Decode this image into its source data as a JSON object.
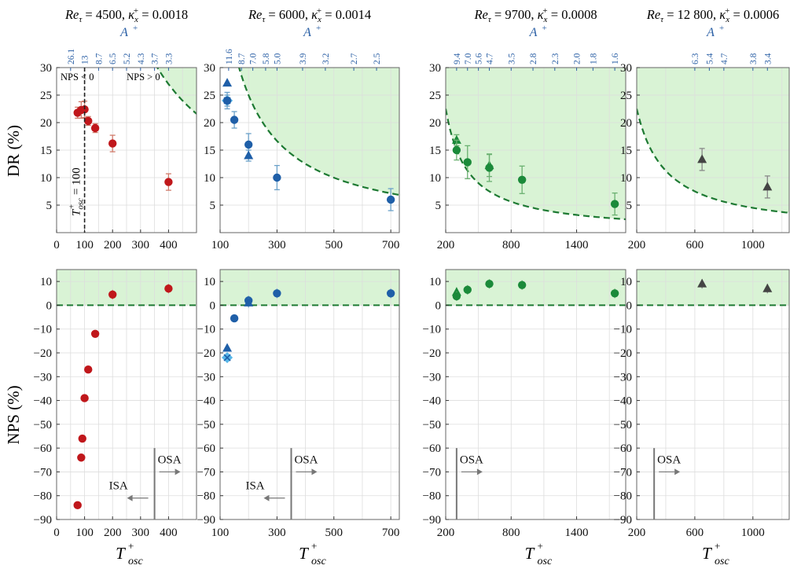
{
  "figure": {
    "ylabel_top": "DR (%)",
    "ylabel_bottom": "NPS (%)",
    "xlabel": {
      "main": "T",
      "sup": "+",
      "sub": "osc"
    },
    "top_axis_label": "A⁺",
    "top_region_labels": [
      "NPS < 0",
      "NPS > 0"
    ],
    "vertical_line_label": "T⁺osc = 100",
    "osa_label": "OSA",
    "isa_label": "ISA"
  },
  "colors": {
    "green_region": "#d9f3d5",
    "green_dashed": "#1e7a33",
    "top_axis": "#2a5fa5",
    "grid": "#dddddd",
    "red": "#c0171b",
    "blue": "#1f5fa8",
    "cyan": "#57b6e8",
    "green": "#1b8a3a",
    "dark": "#444444",
    "error_red": "#d07a6a",
    "error_blue": "#6aa0c8",
    "error_green": "#6ab070",
    "error_dark": "#888888"
  },
  "panels": [
    {
      "title": {
        "re": "4500",
        "kappa": "0.0018"
      },
      "xlim": [
        0,
        500
      ],
      "xticks": [
        "0",
        "100",
        "200",
        "300",
        "400"
      ],
      "xtick_values": [
        0,
        100,
        200,
        300,
        400
      ],
      "top_ticks": [
        "26.1",
        "13",
        "8.7",
        "6.5",
        "5.2",
        "4.3",
        "3.7",
        "3.3"
      ],
      "top_tick_x": [
        50,
        100,
        150,
        200,
        250,
        300,
        350,
        400
      ],
      "dr_curve_c": 10800,
      "dr_points": [
        {
          "x": 75,
          "y": 21.8,
          "err": 1.0,
          "marker": "circle",
          "color": "red"
        },
        {
          "x": 88,
          "y": 22.3,
          "err": 1.5,
          "marker": "circle",
          "color": "red"
        },
        {
          "x": 100,
          "y": 22.4,
          "err": 1.5,
          "marker": "circle",
          "color": "red"
        },
        {
          "x": 113,
          "y": 20.3,
          "err": 0.8,
          "marker": "circle",
          "color": "red"
        },
        {
          "x": 138,
          "y": 19.0,
          "err": 0.8,
          "marker": "circle",
          "color": "red"
        },
        {
          "x": 200,
          "y": 16.2,
          "err": 1.5,
          "marker": "circle",
          "color": "red"
        },
        {
          "x": 400,
          "y": 9.2,
          "err": 1.5,
          "marker": "circle",
          "color": "red"
        }
      ],
      "nps_points": [
        {
          "x": 75,
          "y": -84,
          "marker": "circle",
          "color": "red"
        },
        {
          "x": 88,
          "y": -64,
          "marker": "circle",
          "color": "red"
        },
        {
          "x": 92,
          "y": -56,
          "marker": "circle",
          "color": "red"
        },
        {
          "x": 100,
          "y": -39,
          "marker": "circle",
          "color": "red"
        },
        {
          "x": 113,
          "y": -27,
          "marker": "circle",
          "color": "red"
        },
        {
          "x": 138,
          "y": -12,
          "marker": "circle",
          "color": "red"
        },
        {
          "x": 200,
          "y": 4.5,
          "marker": "circle",
          "color": "red"
        },
        {
          "x": 400,
          "y": 7,
          "marker": "circle",
          "color": "red"
        }
      ],
      "osa_x": 350,
      "show_isa": true
    },
    {
      "title": {
        "re": "6000",
        "kappa": "0.0014"
      },
      "xlim": [
        100,
        730
      ],
      "xticks": [
        "100",
        "300",
        "500",
        "700"
      ],
      "xtick_values": [
        100,
        300,
        500,
        700
      ],
      "top_ticks": [
        "11.6",
        "8.7",
        "7.0",
        "5.8",
        "5.0",
        "3.9",
        "3.2",
        "2.7",
        "2.5"
      ],
      "top_tick_x": [
        130,
        175,
        215,
        260,
        300,
        390,
        470,
        570,
        650
      ],
      "dr_curve_c": 5000,
      "dr_points": [
        {
          "x": 125,
          "y": 24.0,
          "err": 1.0,
          "marker": "cross",
          "color": "cyan"
        },
        {
          "x": 125,
          "y": 27.2,
          "err": 0,
          "marker": "triangle",
          "color": "blue"
        },
        {
          "x": 125,
          "y": 24.0,
          "err": 1.5,
          "marker": "circle",
          "color": "blue"
        },
        {
          "x": 150,
          "y": 20.5,
          "err": 1.5,
          "marker": "circle",
          "color": "blue"
        },
        {
          "x": 200,
          "y": 16.0,
          "err": 2.0,
          "marker": "circle",
          "color": "blue"
        },
        {
          "x": 200,
          "y": 14.0,
          "err": 1.0,
          "marker": "triangle",
          "color": "blue"
        },
        {
          "x": 300,
          "y": 10.0,
          "err": 2.2,
          "marker": "circle",
          "color": "blue"
        },
        {
          "x": 700,
          "y": 6.0,
          "err": 2.0,
          "marker": "circle",
          "color": "blue"
        }
      ],
      "nps_points": [
        {
          "x": 125,
          "y": -22,
          "marker": "cross",
          "color": "cyan"
        },
        {
          "x": 125,
          "y": -18,
          "marker": "triangle",
          "color": "blue"
        },
        {
          "x": 150,
          "y": -5.5,
          "marker": "circle",
          "color": "blue"
        },
        {
          "x": 200,
          "y": 2,
          "marker": "circle",
          "color": "blue"
        },
        {
          "x": 200,
          "y": 1,
          "marker": "triangle",
          "color": "blue"
        },
        {
          "x": 300,
          "y": 5,
          "marker": "circle",
          "color": "blue"
        },
        {
          "x": 700,
          "y": 5,
          "marker": "circle",
          "color": "blue"
        }
      ],
      "osa_x": 350,
      "show_isa": true
    },
    {
      "title": {
        "re": "9700",
        "kappa": "0.0008"
      },
      "xlim": [
        200,
        1850
      ],
      "xticks": [
        "200",
        "800",
        "1400"
      ],
      "xtick_values": [
        200,
        800,
        1400
      ],
      "top_ticks": [
        "9.4",
        "7.0",
        "5.6",
        "4.7",
        "3.5",
        "2.8",
        "2.3",
        "2.0",
        "1.8",
        "1.6"
      ],
      "top_tick_x": [
        300,
        400,
        500,
        600,
        800,
        1000,
        1200,
        1400,
        1550,
        1750
      ],
      "dr_curve_c": 4500,
      "dr_points": [
        {
          "x": 300,
          "y": 16.8,
          "err": 1.0,
          "marker": "triangle",
          "color": "green"
        },
        {
          "x": 300,
          "y": 15.0,
          "err": 1.8,
          "marker": "circle",
          "color": "green"
        },
        {
          "x": 400,
          "y": 12.8,
          "err": 3.0,
          "marker": "circle",
          "color": "green"
        },
        {
          "x": 600,
          "y": 12.2,
          "err": 2.0,
          "marker": "triangle",
          "color": "green"
        },
        {
          "x": 600,
          "y": 11.8,
          "err": 2.5,
          "marker": "circle",
          "color": "green"
        },
        {
          "x": 900,
          "y": 9.6,
          "err": 2.5,
          "marker": "circle",
          "color": "green"
        },
        {
          "x": 1750,
          "y": 5.2,
          "err": 2.0,
          "marker": "circle",
          "color": "green"
        }
      ],
      "nps_points": [
        {
          "x": 300,
          "y": 5.5,
          "marker": "triangle",
          "color": "green"
        },
        {
          "x": 300,
          "y": 3.8,
          "marker": "circle",
          "color": "green"
        },
        {
          "x": 400,
          "y": 6.5,
          "marker": "circle",
          "color": "green"
        },
        {
          "x": 600,
          "y": 9,
          "marker": "circle",
          "color": "green"
        },
        {
          "x": 900,
          "y": 8.5,
          "marker": "circle",
          "color": "green"
        },
        {
          "x": 1750,
          "y": 5,
          "marker": "circle",
          "color": "green"
        }
      ],
      "osa_x": 300,
      "show_isa": false
    },
    {
      "title": {
        "re": "12 800",
        "kappa": "0.0006"
      },
      "xlim": [
        200,
        1250
      ],
      "xticks": [
        "200",
        "600",
        "1000"
      ],
      "xtick_values": [
        200,
        600,
        1000
      ],
      "top_ticks": [
        "6.3",
        "5.4",
        "4.7",
        "3.8",
        "3.4"
      ],
      "top_tick_x": [
        600,
        700,
        800,
        1000,
        1100
      ],
      "dr_curve_c": 4500,
      "dr_points": [
        {
          "x": 650,
          "y": 13.3,
          "err": 2.0,
          "marker": "triangle",
          "color": "dark"
        },
        {
          "x": 1100,
          "y": 8.3,
          "err": 2.0,
          "marker": "triangle",
          "color": "dark"
        }
      ],
      "nps_points": [
        {
          "x": 650,
          "y": 9,
          "marker": "triangle",
          "color": "dark"
        },
        {
          "x": 1100,
          "y": 7,
          "marker": "triangle",
          "color": "dark"
        }
      ],
      "osa_x": 320,
      "show_isa": false
    }
  ]
}
